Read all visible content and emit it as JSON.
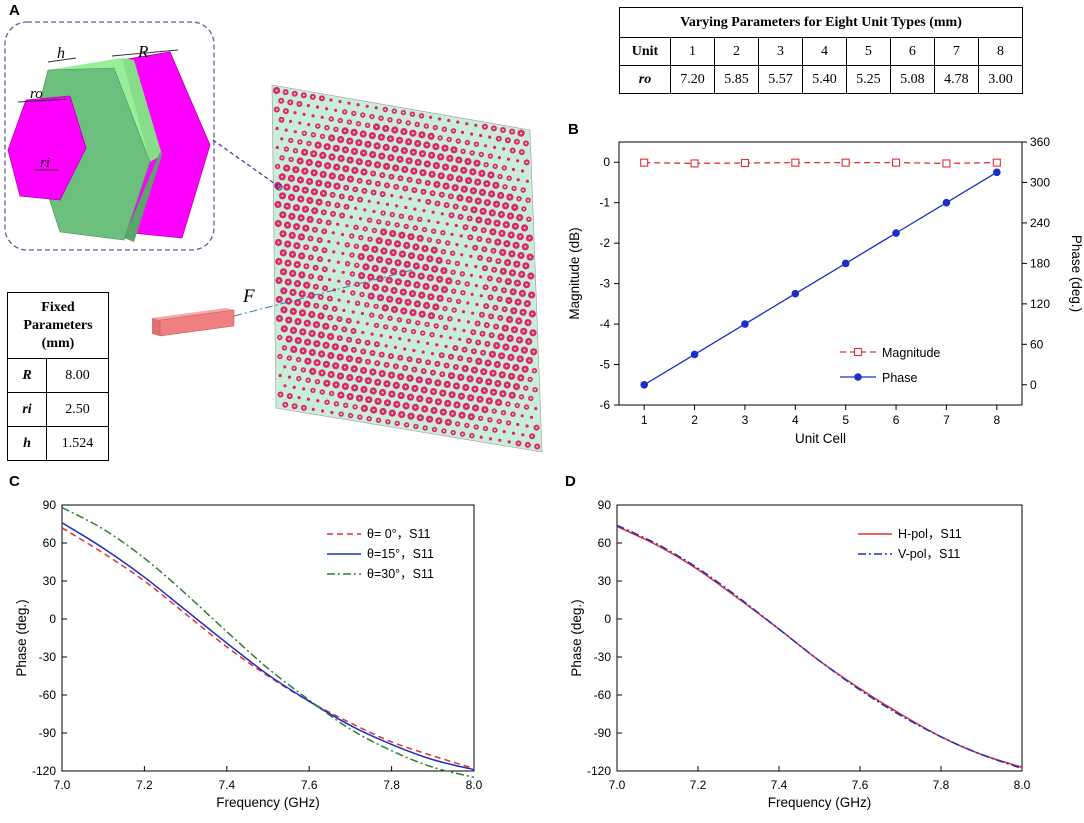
{
  "panels": {
    "a": "A",
    "b": "B",
    "c": "C",
    "d": "D"
  },
  "varying_table": {
    "title": "Varying Parameters for Eight Unit Types (mm)",
    "row1_header": "Unit",
    "units": [
      "1",
      "2",
      "3",
      "4",
      "5",
      "6",
      "7",
      "8"
    ],
    "row2_header": "ro",
    "ro_values": [
      "7.20",
      "5.85",
      "5.57",
      "5.40",
      "5.25",
      "5.08",
      "4.78",
      "3.00"
    ]
  },
  "fixed_table": {
    "title_lines": [
      "Fixed",
      "Parameters",
      "(mm)"
    ],
    "rows": [
      {
        "symbol": "R",
        "value": "8.00"
      },
      {
        "symbol": "ri",
        "value": "2.50"
      },
      {
        "symbol": "h",
        "value": "1.524"
      }
    ]
  },
  "illustration": {
    "labels": {
      "h": "h",
      "R": "R",
      "ro": "ro",
      "ri": "ri",
      "F": "F"
    },
    "colors": {
      "patch": "#ff00ff",
      "substrate": "#66bb77",
      "substrate_top": "#99ee99",
      "surface": "#c8eed8",
      "cell": "#e0256e",
      "feed": "#f08080"
    }
  },
  "chart_data": [
    {
      "id": "B",
      "type": "line",
      "xlabel": "Unit Cell",
      "ylabel_left": "Magnitude (dB)",
      "ylabel_right": "Phase (deg.)",
      "xlim": [
        0.5,
        8.5
      ],
      "ylim_left": [
        -6,
        0.5
      ],
      "ylim_right": [
        -30,
        360
      ],
      "x_ticks": [
        1,
        2,
        3,
        4,
        5,
        6,
        7,
        8
      ],
      "y_ticks_left": [
        0,
        -1,
        -2,
        -3,
        -4,
        -5,
        -6
      ],
      "y_ticks_right": [
        0,
        60,
        120,
        180,
        240,
        300,
        360
      ],
      "x": [
        1,
        2,
        3,
        4,
        5,
        6,
        7,
        8
      ],
      "series": [
        {
          "name": "Magnitude",
          "axis": "left",
          "color": "#e03030",
          "style": "dashed",
          "marker": "open-square",
          "values": [
            -0.01,
            -0.03,
            -0.02,
            -0.01,
            -0.01,
            -0.01,
            -0.03,
            -0.01
          ]
        },
        {
          "name": "Phase",
          "axis": "right",
          "color": "#1a2fc8",
          "style": "solid",
          "marker": "filled-circle",
          "values": [
            0,
            45,
            90,
            135,
            180,
            225,
            270,
            315
          ]
        }
      ]
    },
    {
      "id": "C",
      "type": "line",
      "xlabel": "Frequency (GHz)",
      "ylabel": "Phase (deg.)",
      "xlim": [
        7.0,
        8.0
      ],
      "ylim": [
        -120,
        90
      ],
      "x_ticks": [
        "7.0",
        "7.2",
        "7.4",
        "7.6",
        "7.8",
        "8.0"
      ],
      "y_ticks": [
        90,
        60,
        30,
        0,
        -30,
        -60,
        -90,
        -120
      ],
      "x": [
        7.0,
        7.1,
        7.2,
        7.3,
        7.4,
        7.5,
        7.6,
        7.7,
        7.8,
        7.9,
        8.0
      ],
      "series": [
        {
          "name": "θ= 0°，S11",
          "color": "#e03030",
          "style": "dashed",
          "values": [
            72,
            52,
            30,
            4,
            -22,
            -45,
            -65,
            -82,
            -97,
            -108,
            -118
          ]
        },
        {
          "name": "θ=15°，S11",
          "color": "#1a2fc8",
          "style": "solid",
          "values": [
            76,
            56,
            33,
            7,
            -19,
            -44,
            -65,
            -84,
            -99,
            -111,
            -119
          ]
        },
        {
          "name": "θ=30°，S11",
          "color": "#2e7d32",
          "style": "dashdot",
          "values": [
            88,
            71,
            48,
            20,
            -10,
            -39,
            -64,
            -87,
            -104,
            -117,
            -125
          ]
        }
      ]
    },
    {
      "id": "D",
      "type": "line",
      "xlabel": "Frequency (GHz)",
      "ylabel": "Phase (deg.)",
      "xlim": [
        7.0,
        8.0
      ],
      "ylim": [
        -120,
        90
      ],
      "x_ticks": [
        "7.0",
        "7.2",
        "7.4",
        "7.6",
        "7.8",
        "8.0"
      ],
      "y_ticks": [
        90,
        60,
        30,
        0,
        -30,
        -60,
        -90,
        -120
      ],
      "x": [
        7.0,
        7.1,
        7.2,
        7.3,
        7.4,
        7.5,
        7.6,
        7.7,
        7.8,
        7.9,
        8.0
      ],
      "series": [
        {
          "name": "H-pol，S11",
          "color": "#e03030",
          "style": "solid",
          "values": [
            73,
            58,
            39,
            16,
            -8,
            -33,
            -55,
            -75,
            -93,
            -107,
            -117
          ]
        },
        {
          "name": "V-pol，S11",
          "color": "#1a2fc8",
          "style": "dashdot",
          "values": [
            74,
            59,
            40,
            17,
            -8,
            -33,
            -56,
            -76,
            -93,
            -107,
            -118
          ]
        }
      ]
    }
  ]
}
